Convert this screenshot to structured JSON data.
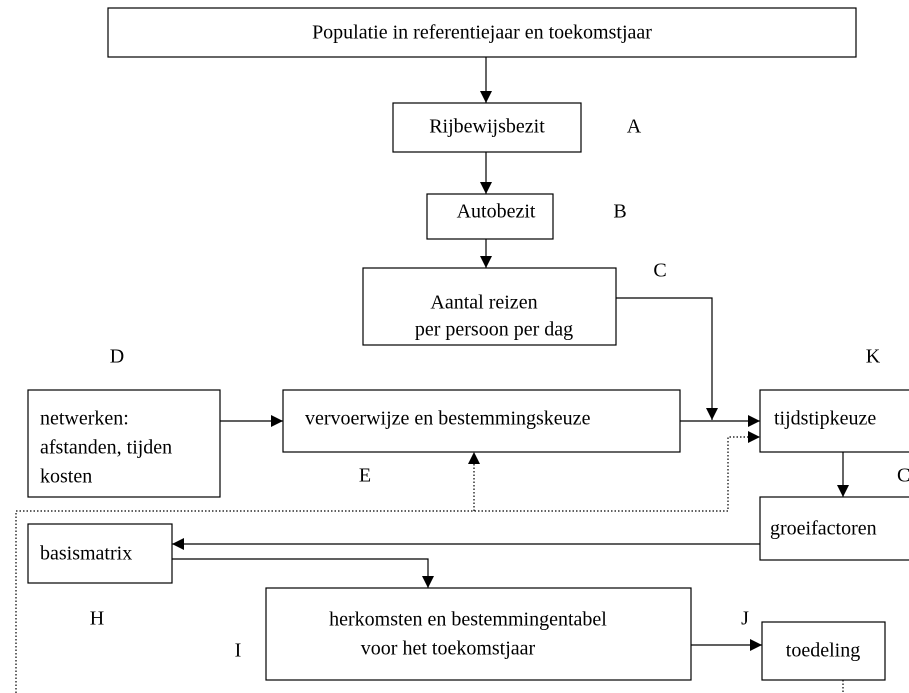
{
  "nodes": [
    {
      "lines": [
        "Populatie in referentiejaar en toekomstjaar"
      ]
    },
    {
      "lines": [
        "Rijbewijsbezit"
      ]
    },
    {
      "lines": [
        "Autobezit"
      ]
    },
    {
      "lines": [
        "Aantal reizen",
        "per persoon per dag"
      ]
    },
    {
      "lines": [
        "netwerken:",
        "afstanden, tijden",
        "kosten"
      ]
    },
    {
      "lines": [
        "vervoerwijze en bestemmingskeuze"
      ]
    },
    {
      "lines": [
        "tijdstipkeuze"
      ]
    },
    {
      "lines": [
        "groeifactoren"
      ]
    },
    {
      "lines": [
        "basismatrix"
      ]
    },
    {
      "lines": [
        "herkomsten en bestemmingentabel",
        "voor het toekomstjaar"
      ]
    },
    {
      "lines": [
        "toedeling"
      ]
    }
  ],
  "letters": [
    "A",
    "B",
    "C",
    "D",
    "K",
    "E",
    "C",
    "H",
    "I",
    "J"
  ]
}
